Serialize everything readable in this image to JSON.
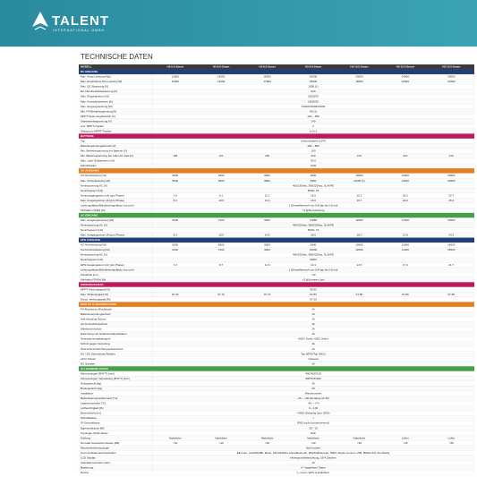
{
  "header": {
    "brand": "TALENT",
    "tagline": "INTERNATIONAL GMBH"
  },
  "title": "TECHNISCHE DATEN",
  "table": {
    "columns": [
      "MODELL",
      "H3-5.0-Smart",
      "H3-6.0-Smart",
      "H3-8.0-Smart",
      "H3-9.9-Smart",
      "H3-10.0-Smart",
      "H3-12.0-Smart",
      "H3-15.0-Smart"
    ],
    "header_color": "#3a3a3a",
    "sections": [
      {
        "title": "DC-EINGANG",
        "color": "#1f3e7a",
        "rows": [
          {
            "label": "Max. Array-Leistung [Wp]",
            "values": [
              "12000",
              "14000",
              "18000",
              "20000",
              "20000",
              "24000",
              "30000"
            ]
          },
          {
            "label": "Max. Empfohlene DC-Leistung [W]",
            "values": [
              "11000",
              "13200",
              "17600",
              "18000",
              "18000",
              "22000",
              "22500"
            ]
          },
          {
            "label": "Max. DC-Spannung [V]",
            "values": [
              "1000 (1)"
            ]
          },
          {
            "label": "DC-Nennbetriebsspannung [V]",
            "values": [
              "620"
            ]
          },
          {
            "label": "Max. Eingangsstrom [A]",
            "values": [
              "20/20/20"
            ]
          },
          {
            "label": "Max. Kurzschlussstrom [A]",
            "values": [
              "25/25/25"
            ]
          },
          {
            "label": "Max. Eingangsleistung [W]",
            "values": [
              "13000/13000/13000"
            ]
          },
          {
            "label": "Min. PV-Betriebsspannung [V]",
            "values": [
              "90 (1)"
            ]
          },
          {
            "label": "MPPT-Spannungsbereich [V]",
            "values": [
              "120 ~ 950"
            ]
          },
          {
            "label": "Startbetriebsspannung [V]",
            "values": [
              "140"
            ]
          },
          {
            "label": "Anz. MPPT-Tracker",
            "values": [
              "3"
            ]
          },
          {
            "label": "Strings pro MPPT-Tracker",
            "values": [
              "1+1+1"
            ]
          }
        ]
      },
      {
        "title": "BATTERIE",
        "color": "#c2185b",
        "rows": [
          {
            "label": "Typ",
            "values": [
              "Lithiumbatterie (LFP)"
            ]
          },
          {
            "label": "Batteriespannungsbereich [V]",
            "values": [
              "160 ~ 800"
            ]
          },
          {
            "label": "Min. Betriebsspannung der Batterie [V]",
            "values": [
              "150"
            ]
          },
          {
            "label": "Min. Batteriespannung bei voller AC-Last [V]",
            "values": [
              "128",
              "121",
              "160",
              "210",
              "210",
              "210",
              "210"
            ]
          },
          {
            "label": "Max. Lade-/Entladestrom [A]",
            "values": [
              "50.0"
            ]
          },
          {
            "label": "Schnittstellen",
            "values": [
              "CAN"
            ]
          }
        ]
      },
      {
        "title": "AC-AUSGANG",
        "color": "#e67e22",
        "rows": [
          {
            "label": "AC-Nennleistung [VA]",
            "values": [
              "5000",
              "6000",
              "8000",
              "9900",
              "10000",
              "12000",
              "15000"
            ]
          },
          {
            "label": "Max. Scheinleistung [VA]",
            "values": [
              "5500",
              "6600",
              "8800",
              "9900",
              "11000 (1)",
              "13200",
              "16500"
            ]
          },
          {
            "label": "Nennspannung AC [V]",
            "values": [
              "400/230Vac; 380/220Vac, 3L/N/PE"
            ]
          },
          {
            "label": "Nennfrequenz [Hz]",
            "values": [
              "50/60, ±5"
            ]
          },
          {
            "label": "Nennausgangsstrom [A] (pro Phase)",
            "values": [
              "7.6",
              "9.1",
              "12.1",
              "15.0",
              "15.2",
              "18.2",
              "22.7"
            ]
          },
          {
            "label": "Max. Ausgangsstrom [A] (pro Phase)",
            "values": [
              "8.3",
              "10.0",
              "13.3",
              "15.0",
              "16.7",
              "20.0",
              "25.0"
            ]
          },
          {
            "label": "Leistungsfaktor/Blindleistungsfaktor (cos phi)",
            "values": [
              "1 (Einstellbereich von 0.8 kap bis 0.8 ind)"
            ]
          },
          {
            "label": "Klirrfaktor [THDi] [%]",
            "values": [
              "<3 @Nennleistung"
            ]
          }
        ]
      },
      {
        "title": "AC-EINGANG",
        "color": "#43a047",
        "rows": [
          {
            "label": "Max. Ausgangsleistung [VA]",
            "values": [
              "6000",
              "7200",
              "9600",
              "11880",
              "12000",
              "14400",
              "16000"
            ]
          },
          {
            "label": "Nennspannung AC [V]",
            "values": [
              "400/220Vac; 380/220Vac, 3L/N/PE"
            ]
          },
          {
            "label": "Nennfrequenz [Hz]",
            "values": [
              "50/60, ±5"
            ]
          },
          {
            "label": "Max. Ausgangsstrom [A] (pro Phase)",
            "values": [
              "8.3",
              "10.9",
              "14.5",
              "18.0",
              "18.2",
              "21.8",
              "24.2"
            ]
          }
        ]
      },
      {
        "title": "EPS AUSGANG",
        "color": "#1f3e7a",
        "rows": [
          {
            "label": "AC-Nennleistung [VA]",
            "values": [
              "5000",
              "6000",
              "8000",
              "9900",
              "10000",
              "12000",
              "15000"
            ]
          },
          {
            "label": "Kurzschlussleistung [VA]",
            "values": [
              "6000",
              "7200",
              "9600",
              "10000",
              "12000",
              "14400",
              "16500"
            ]
          },
          {
            "label": "Nennspannung AC [V]",
            "values": [
              "400/230Vac; 380/220Vac, 3L/N/PE"
            ]
          },
          {
            "label": "Nennfrequenz [Hz]",
            "values": [
              "50/60"
            ]
          },
          {
            "label": "EPS Ausgangsstrom [A] (pro Phase)",
            "values": [
              "7.2",
              "8.7",
              "11.6",
              "14.3",
              "14.5",
              "17.4",
              "21.7"
            ]
          },
          {
            "label": "Leistungsfaktor/Blindleistungsfaktor (cos phi)",
            "values": [
              "1 (Einstellbereich von 0.8 kap bis 0.8 ind)"
            ]
          },
          {
            "label": "Schaltzeit [ms]",
            "values": [
              "<10"
            ]
          },
          {
            "label": "Klirrfaktor [THDv] [%]",
            "values": [
              "<3 @Linearer Last"
            ]
          }
        ]
      },
      {
        "title": "WIRKUNGSGRAD",
        "color": "#c2185b",
        "rows": [
          {
            "label": "MPPT Wirkungsgrad [%]",
            "values": [
              "99.90"
            ]
          },
          {
            "label": "Max. Wirkungsgrad [%]",
            "values": [
              "97.30",
              "97.70",
              "97.70",
              "97.80",
              "97.80",
              "97.80",
              "97.80"
            ]
          },
          {
            "label": "Europ. Wirkungsgrad [%]",
            "values": [
              "97.20"
            ]
          }
        ]
      },
      {
        "title": "SCHUTZ & ÜBERWACHUNG",
        "color": "#e67e22",
        "rows": [
          {
            "label": "PV-Rückstrom-Blockdiode",
            "values": [
              "JA"
            ]
          },
          {
            "label": "Batterieverpolungsschutz",
            "values": [
              "JA"
            ]
          },
          {
            "label": "Anti-Islanding-Schutz",
            "values": [
              "JA"
            ]
          },
          {
            "label": "AC-Kurzschlussschutz",
            "values": [
              "JA"
            ]
          },
          {
            "label": "Ableitstromschutz",
            "values": [
              "JA"
            ]
          },
          {
            "label": "Erkennung von Isolationswiderständen",
            "values": [
              "JA"
            ]
          },
          {
            "label": "Überspannungskategorie",
            "values": [
              "III(AC Seite), II(DC Seite)"
            ]
          },
          {
            "label": "Schutz gegen Verpolung",
            "values": [
              "JA"
            ]
          },
          {
            "label": "Überstromschutz/Temperaturschutz",
            "values": [
              "JA"
            ]
          },
          {
            "label": "AC / DC Überschuss-Ableiter",
            "values": [
              "Typ II(PV)/Typ II(AC)"
            ]
          },
          {
            "label": "AFCI-Schutz",
            "values": [
              "Optional"
            ]
          },
          {
            "label": "DC Schalter",
            "values": [
              "JA"
            ]
          }
        ]
      },
      {
        "title": "ALLGEMEINE DATEN",
        "color": "#43a047",
        "rows": [
          {
            "label": "Abmessungen (B*H*T) [mm]",
            "values": [
              "490*400*210"
            ]
          },
          {
            "label": "Abmessungen Verpackung (B*H*T) [mm]",
            "values": [
              "560*545*280"
            ]
          },
          {
            "label": "Nettogewicht [kg]",
            "values": [
              "30"
            ]
          },
          {
            "label": "Bruttogewicht [kg]",
            "values": [
              "40"
            ]
          },
          {
            "label": "Installation",
            "values": [
              "Wandmontiert"
            ]
          },
          {
            "label": "Betriebstemperaturbereich [°C]",
            "values": [
              "-25 ~ +60 (Derating ab 45)"
            ]
          },
          {
            "label": "Lagertemperatur [°C]",
            "values": [
              "-40 ~ +70"
            ]
          },
          {
            "label": "Luftfeuchtigkeit [%]",
            "values": [
              "0 ~ 100"
            ]
          },
          {
            "label": "Betriebshöhe [m]",
            "values": [
              "<4000 (Derating über 3000)"
            ]
          },
          {
            "label": "Schutzklasse",
            "values": [
              "I"
            ]
          },
          {
            "label": "IP-Schutzklasse",
            "values": [
              "IP65 (nicht kondensierend)"
            ]
          },
          {
            "label": "Eigenverbrauch [W]",
            "values": [
              "30 * 15"
            ]
          },
          {
            "label": "Topologie (Solar-Seite)",
            "values": [
              "Nein"
            ]
          },
          {
            "label": "Kühlung",
            "values": [
              "Natürliche",
              "Natürliche",
              "Natürliche",
              "Natürliche",
              "Natürliche",
              "Lüfter",
              "Lüfter"
            ]
          },
          {
            "label": "Normale Geräuschemission [dB]",
            "values": [
              "<40",
              "<40",
              "<40",
              "<40",
              "<45",
              "<45",
              "<55"
            ]
          },
          {
            "label": "Wechselrichtertopologie",
            "values": [
              "Nicht isoliert"
            ]
          },
          {
            "label": "Kommunikationsschnittstellen",
            "values": [
              "Ethernet, CAN/RS485, Meter, WiLAN/WiFi+LAN+Bluetooth, RS232(Ethernet), DRM, Ripple-Control, USB, BMS/CAN, SG Ready"
            ]
          },
          {
            "label": "LCD Display",
            "values": [
              "Hintergrundbeleuchtung, 16*4 Zeichen"
            ]
          },
          {
            "label": "Standard-Garantie (Jahr)",
            "values": [
              "10"
            ]
          },
          {
            "label": "Bedienung",
            "values": [
              "4 * kapazitiver Taster"
            ]
          },
          {
            "label": "Buzzer",
            "values": [
              "1, innen / EPS & Erdfehler)"
            ]
          }
        ]
      }
    ]
  }
}
